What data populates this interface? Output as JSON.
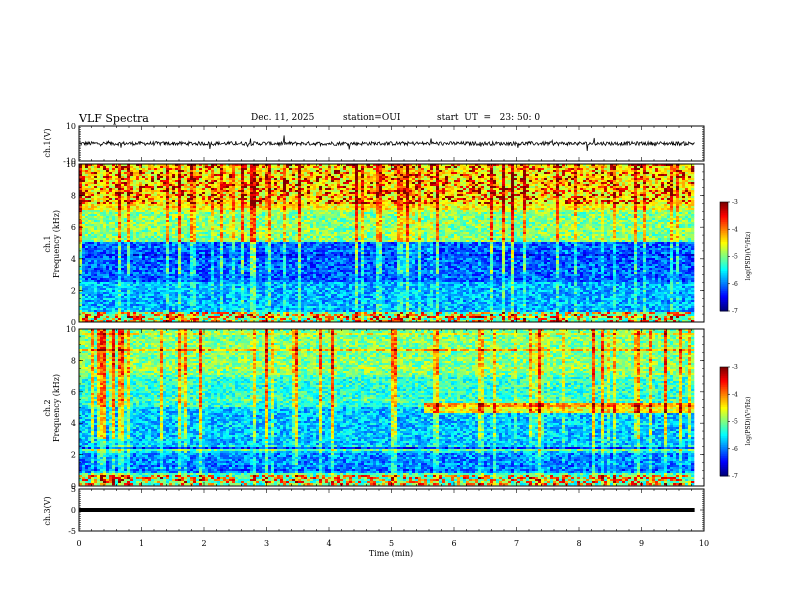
{
  "header": {
    "title": "VLF Spectra",
    "date": "Dec. 11, 2025",
    "station": "station=OUI",
    "start_ut": "start  UT  =   23: 50: 0"
  },
  "chart_data": [
    {
      "type": "line",
      "panel": "ch1 waveform",
      "ylabel": "ch.1(V)",
      "yticks": [
        "10",
        "-10"
      ],
      "ylim": [
        -10,
        10
      ],
      "xlim": [
        0,
        10
      ],
      "trace_color": "#000000",
      "baseline": 0
    },
    {
      "type": "heatmap",
      "panel": "ch1 spectrogram",
      "ylabel_line1": "ch.1",
      "ylabel_line2": "Frequency (kHz)",
      "yticks": [
        "0",
        "2",
        "4",
        "6",
        "8",
        "10"
      ],
      "ylim": [
        0,
        10
      ],
      "xlim": [
        0,
        9.85
      ],
      "colorbar": {
        "label": "log(PSD)(V²/Hz)",
        "ticks": [
          "-3",
          "-4",
          "-5",
          "-6",
          "-7"
        ],
        "range": [
          -7,
          -3
        ],
        "colormap": "jet"
      }
    },
    {
      "type": "heatmap",
      "panel": "ch2 spectrogram",
      "ylabel_line1": "ch.2",
      "ylabel_line2": "Frequency (kHz)",
      "yticks": [
        "0",
        "2",
        "4",
        "6",
        "8",
        "10"
      ],
      "ylim": [
        0,
        10
      ],
      "xlim": [
        0,
        9.85
      ],
      "colorbar": {
        "label": "log(PSD)(V²/Hz)",
        "ticks": [
          "-3",
          "-4",
          "-5",
          "-6",
          "-7"
        ],
        "range": [
          -7,
          -3
        ],
        "colormap": "jet"
      }
    },
    {
      "type": "line",
      "panel": "ch3 waveform",
      "ylabel": "ch.3(V)",
      "yticks": [
        "5",
        "0",
        "-5"
      ],
      "ylim": [
        -5,
        5
      ],
      "xlim": [
        0,
        10
      ],
      "trace_color": "#000000",
      "value": 0
    }
  ],
  "xaxis": {
    "label": "Time (min)",
    "ticks": [
      "0",
      "1",
      "2",
      "3",
      "4",
      "5",
      "6",
      "7",
      "8",
      "9",
      "10"
    ],
    "range": [
      0,
      10
    ]
  }
}
